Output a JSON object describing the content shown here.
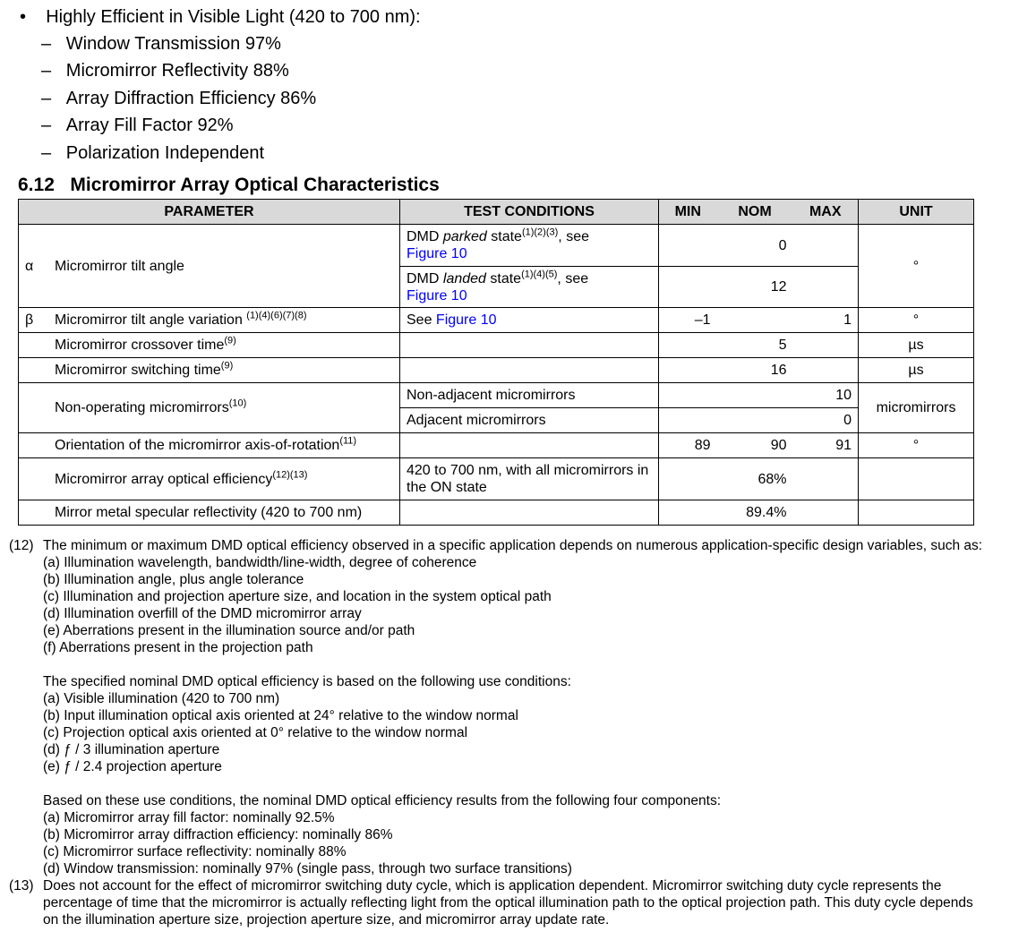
{
  "bullets": {
    "main": "Highly Efficient in Visible Light (420 to 700 nm):",
    "subs": [
      "Window Transmission 97%",
      "Micromirror Reflectivity 88%",
      "Array Diffraction Efficiency 86%",
      "Array Fill Factor 92%",
      "Polarization Independent"
    ]
  },
  "section": {
    "title": "6.12   Micromirror Array Optical Characteristics"
  },
  "table": {
    "headers": {
      "parameter": "PARAMETER",
      "test": "TEST CONDITIONS",
      "min": "MIN",
      "nom": "NOM",
      "max": "MAX",
      "unit": "UNIT"
    },
    "alpha": {
      "sym": "α",
      "param": "Micromirror tilt angle",
      "unit": "°",
      "parked": {
        "pre": "DMD ",
        "em": "parked",
        "post": " state",
        "sup": "(1)(2)(3)",
        "tail": ", see",
        "link": "Figure 10",
        "nom": "0"
      },
      "landed": {
        "pre": "DMD ",
        "em": "landed",
        "post": " state",
        "sup": "(1)(4)(5)",
        "tail": ", see",
        "link": "Figure 10",
        "nom": "12"
      }
    },
    "beta": {
      "sym": "β",
      "param": "Micromirror tilt angle variation ",
      "sup": "(1)(4)(6)(7)(8)",
      "test": "See ",
      "link": "Figure 10",
      "min": "–1",
      "max": "1",
      "unit": "°"
    },
    "crossover": {
      "param": "Micromirror crossover time",
      "sup": "(9)",
      "nom": "5",
      "unit": "µs"
    },
    "switching": {
      "param": "Micromirror switching time",
      "sup": "(9)",
      "nom": "16",
      "unit": "µs"
    },
    "nonop": {
      "param": "Non-operating micromirrors",
      "sup": "(10)",
      "unit": "micromirrors",
      "rows": [
        {
          "test": "Non-adjacent micromirrors",
          "max": "10"
        },
        {
          "test": "Adjacent micromirrors",
          "max": "0"
        }
      ]
    },
    "orientation": {
      "param": "Orientation of the micromirror axis-of-rotation",
      "sup": "(11)",
      "min": "89",
      "nom": "90",
      "max": "91",
      "unit": "°"
    },
    "efficiency": {
      "param": "Micromirror array optical efficiency",
      "sup": "(12)(13)",
      "test": "420 to 700 nm, with all micromirrors in the ON state",
      "nom": "68%"
    },
    "reflectivity": {
      "param": "Mirror metal specular reflectivity (420 to 700 nm)",
      "nom": "89.4%"
    }
  },
  "footnotes": {
    "n12": {
      "label": "(12)",
      "text": "The minimum or maximum DMD optical efficiency observed in a specific application depends on numerous application-specific design variables, such as:",
      "list1": [
        "(a)  Illumination wavelength, bandwidth/line-width, degree of coherence",
        "(b) Illumination angle, plus angle tolerance",
        "(c) Illumination and projection aperture size, and location in the system optical path",
        "(d) Illumination overfill of the DMD micromirror array",
        "(e) Aberrations present in the illumination source and/or path",
        "(f) Aberrations present in the projection path"
      ],
      "para2": "The specified nominal DMD optical efficiency is based on the following use conditions:",
      "list2": [
        "(a) Visible illumination (420 to 700 nm)",
        "(b) Input illumination optical axis oriented at 24° relative to the window normal",
        "(c) Projection optical axis oriented at 0° relative to the window normal",
        "(d) ƒ / 3 illumination aperture",
        "(e)  ƒ / 2.4 projection aperture"
      ],
      "para3": "Based on these use conditions, the nominal DMD optical efficiency results from the following four components:",
      "list3": [
        "(a) Micromirror array fill factor: nominally 92.5%",
        "(b) Micromirror array diffraction efficiency: nominally 86%",
        "(c) Micromirror surface reflectivity: nominally 88%",
        "(d) Window transmission: nominally 97% (single pass, through two surface transitions)"
      ]
    },
    "n13": {
      "label": "(13)",
      "text": "Does not account for the effect of micromirror switching duty cycle, which is application dependent. Micromirror switching duty cycle represents the percentage of time that the micromirror is actually reflecting light from the optical illumination path to the optical projection path. This duty cycle depends on the illumination aperture size, projection aperture size, and micromirror array update rate."
    }
  }
}
